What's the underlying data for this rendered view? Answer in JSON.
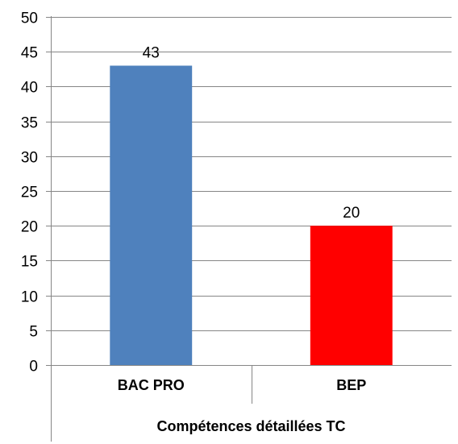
{
  "chart_data": {
    "type": "bar",
    "categories": [
      "BAC PRO",
      "BEP"
    ],
    "values": [
      43,
      20
    ],
    "bar_colors": [
      "#4f81bd",
      "#ff0000"
    ],
    "xlabel": "Compétences détaillées TC",
    "ylim": [
      0,
      50
    ],
    "ytick_step": 5,
    "grid": true,
    "legend": "none"
  }
}
